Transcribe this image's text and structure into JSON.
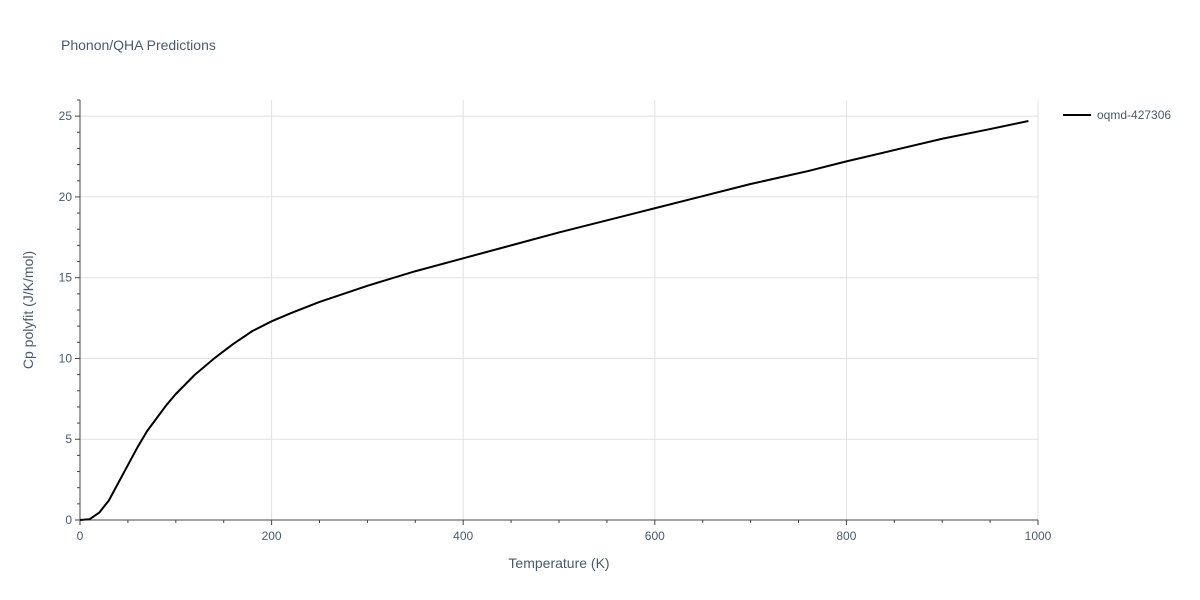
{
  "chart_data": {
    "type": "line",
    "title": "Phonon/QHA Predictions",
    "xlabel": "Temperature (K)",
    "ylabel": "Cp polyfit (J/K/mol)",
    "xlim": [
      0,
      1000
    ],
    "ylim": [
      0,
      26
    ],
    "x_ticks": [
      0,
      200,
      400,
      600,
      800,
      1000
    ],
    "x_tick_labels": [
      "0",
      "200",
      "400",
      "600",
      "800",
      "1000"
    ],
    "y_ticks": [
      0,
      5,
      10,
      15,
      20,
      25
    ],
    "y_tick_labels": [
      "0",
      "5",
      "10",
      "15",
      "20",
      "25"
    ],
    "grid": true,
    "legend_position": "top-right",
    "series": [
      {
        "name": "oqmd-427306",
        "color": "#000000",
        "x": [
          0,
          10,
          20,
          30,
          40,
          50,
          60,
          70,
          80,
          90,
          100,
          120,
          140,
          160,
          180,
          200,
          220,
          250,
          300,
          350,
          400,
          450,
          500,
          560,
          600,
          640,
          700,
          760,
          800,
          850,
          900,
          950,
          990
        ],
        "y": [
          0,
          0.05,
          0.45,
          1.2,
          2.3,
          3.4,
          4.5,
          5.5,
          6.3,
          7.1,
          7.8,
          9.0,
          10.0,
          10.9,
          11.7,
          12.3,
          12.8,
          13.5,
          14.5,
          15.4,
          16.2,
          17.0,
          17.8,
          18.7,
          19.3,
          19.9,
          20.8,
          21.6,
          22.2,
          22.9,
          23.6,
          24.2,
          24.7
        ]
      }
    ]
  }
}
